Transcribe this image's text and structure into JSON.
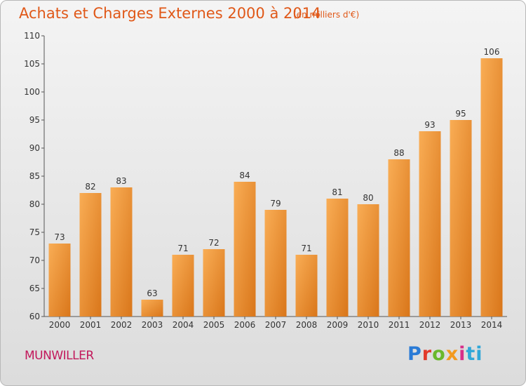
{
  "header": {
    "title": "Achats et Charges Externes 2000 à 2014",
    "subtitle": "(en milliers d'€)"
  },
  "footer": {
    "commune": "MUNWILLER",
    "brand": [
      "P",
      "r",
      "o",
      "x",
      "i",
      "ti"
    ]
  },
  "colors": {
    "title": "#e05818",
    "bar_light": "#f7a24a",
    "bar_dark": "#dc7a1c",
    "commune": "#c2185b"
  },
  "chart_data": {
    "type": "bar",
    "categories": [
      "2000",
      "2001",
      "2002",
      "2003",
      "2004",
      "2005",
      "2006",
      "2007",
      "2008",
      "2009",
      "2010",
      "2011",
      "2012",
      "2013",
      "2014"
    ],
    "values": [
      73,
      82,
      83,
      63,
      71,
      72,
      84,
      79,
      71,
      81,
      80,
      88,
      93,
      95,
      106
    ],
    "title": "Achats et Charges Externes 2000 à 2014",
    "xlabel": "",
    "ylabel": "",
    "ylim": [
      60,
      110
    ],
    "yticks": [
      60,
      65,
      70,
      75,
      80,
      85,
      90,
      95,
      100,
      105,
      110
    ],
    "grid": false,
    "data_labels": true
  }
}
